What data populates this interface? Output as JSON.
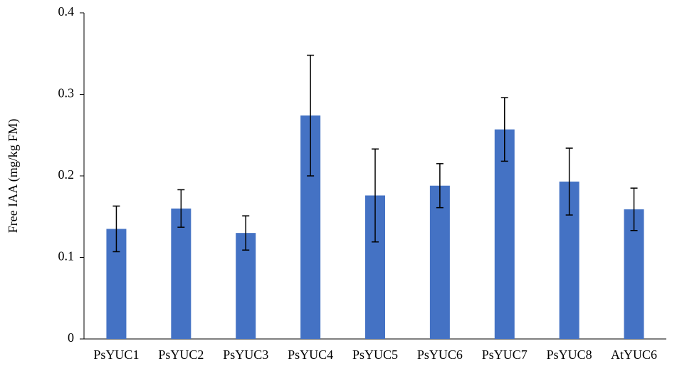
{
  "chart_data": {
    "type": "bar",
    "y_label": "Free IAA (mg/kg FM)",
    "categories": [
      "PsYUC1",
      "PsYUC2",
      "PsYUC3",
      "PsYUC4",
      "PsYUC5",
      "PsYUC6",
      "PsYUC7",
      "PsYUC8",
      "AtYUC6"
    ],
    "values": [
      0.135,
      0.16,
      0.13,
      0.274,
      0.176,
      0.188,
      0.257,
      0.193,
      0.159
    ],
    "errors": [
      0.028,
      0.023,
      0.021,
      0.074,
      0.057,
      0.027,
      0.039,
      0.041,
      0.026
    ],
    "color": "#4472c4",
    "ylim": [
      0,
      0.4
    ],
    "yticks": [
      0,
      0.1,
      0.2,
      0.3,
      0.4
    ],
    "grid": false
  }
}
